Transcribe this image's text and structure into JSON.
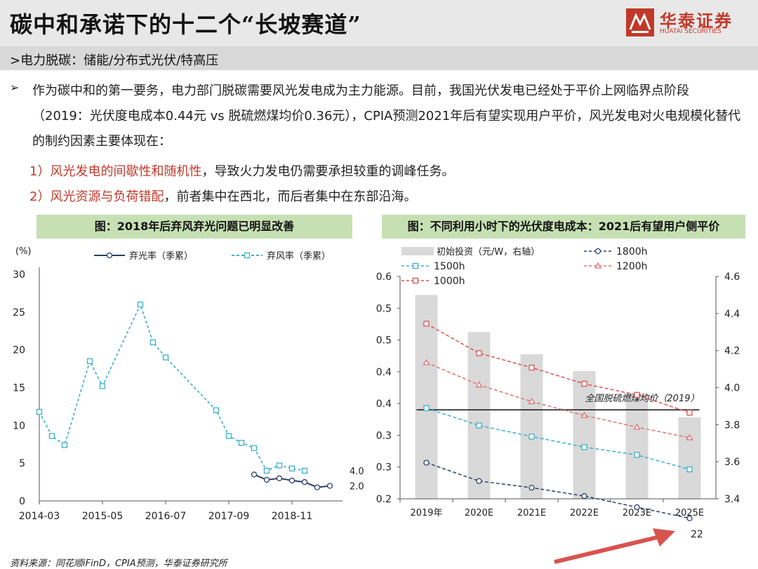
{
  "header": {
    "title": "碳中和承诺下的十二个“长坡赛道”",
    "logo_cn": "华泰证券",
    "logo_en": "HUATAI SECURITIES"
  },
  "subtitle": ">电力脱碳：储能/分布式光伏/特高压",
  "bullet_symbol": "➢",
  "paragraph": "作为碳中和的第一要务，电力部门脱碳需要风光发电成为主力能源。目前，我国光伏发电已经处于平价上网临界点阶段（2019：光伏度电成本0.44元 vs 脱硫燃煤均价0.36元），CPIA预测2021年后有望实现用户平价，风光发电对火电规模化替代的制约因素主要体现在：",
  "points": [
    {
      "red": "1）风光发电的间歇性和随机性",
      "rest": "，导致火力发电仍需要承担较重的调峰任务。"
    },
    {
      "red": "2）风光资源与负荷错配",
      "rest": "，前者集中在西北，而后者集中在东部沿海。"
    }
  ],
  "footer": "资料来源：同花顺iFinD，CPIA预测，华泰证券研究所",
  "page_number": "22",
  "colors": {
    "red": "#c0392b",
    "green_box": "#c6e0b4",
    "navy": "#2c3e6b",
    "teal": "#3ab0c9",
    "bar_gray": "#d9d9d9"
  },
  "chart_data": [
    {
      "type": "line",
      "title": "图：2018年后弃风弃光问题已明显改善",
      "ylabel": "(%)",
      "ylim": [
        0,
        30
      ],
      "yticks": [
        "0",
        "5",
        "10",
        "15",
        "20",
        "25",
        "30"
      ],
      "xtick_labels": [
        "2014-03",
        "2015-05",
        "2016-07",
        "2017-09",
        "2018-11"
      ],
      "xtick_quarters": [
        0,
        5,
        10,
        15,
        20
      ],
      "x_quarters_total": 24,
      "legend": "top",
      "series": [
        {
          "name": "弃光率（季累）",
          "color": "#2c3e6b",
          "style": "solid",
          "points": [
            [
              17,
              3.5
            ],
            [
              18,
              2.8
            ],
            [
              19,
              3.0
            ],
            [
              20,
              2.7
            ],
            [
              21,
              2.5
            ],
            [
              22,
              1.8
            ],
            [
              23,
              2.0
            ]
          ]
        },
        {
          "name": "弃风率（季累）",
          "color": "#3ab0c9",
          "style": "dashed",
          "points": [
            [
              0,
              11.8
            ],
            [
              1,
              8.6
            ],
            [
              2,
              7.4
            ],
            [
              4,
              18.5
            ],
            [
              5,
              15.2
            ],
            [
              8,
              26.0
            ],
            [
              9,
              21.0
            ],
            [
              10,
              19.0
            ],
            [
              14,
              12.0
            ],
            [
              15,
              8.6
            ],
            [
              16,
              7.7
            ],
            [
              17,
              7.0
            ],
            [
              18,
              4.0
            ],
            [
              19,
              4.7
            ],
            [
              20,
              4.3
            ],
            [
              21,
              4.0
            ]
          ]
        }
      ],
      "end_labels": [
        "4.0",
        "2.0"
      ]
    },
    {
      "type": "bar+line",
      "title": "图：不同利用小时下的光伏度电成本：2021后有望用户侧平价",
      "categories": [
        "2019年",
        "2020E",
        "2021E",
        "2022E",
        "2023E",
        "2025E"
      ],
      "left_ylim": [
        0.2,
        0.6
      ],
      "left_yticks": [
        "0.2",
        "0.3",
        "0.3",
        "0.4",
        "0.4",
        "0.5",
        "0.5",
        "0.6"
      ],
      "right_ylim": [
        3.4,
        4.6
      ],
      "right_yticks": [
        "3.4",
        "3.6",
        "3.8",
        "4.0",
        "4.2",
        "4.4",
        "4.6"
      ],
      "bars": {
        "name": "初始投资（元/W，右轴）",
        "color": "#d9d9d9",
        "values": [
          4.5,
          4.3,
          4.18,
          4.09,
          3.97,
          3.84
        ]
      },
      "series": [
        {
          "name": "1800h",
          "color": "#2c3e6b",
          "marker": "circle",
          "values": [
            0.265,
            0.232,
            0.22,
            0.205,
            0.185,
            0.165
          ]
        },
        {
          "name": "1500h",
          "color": "#3ab0c9",
          "marker": "square",
          "values": [
            0.363,
            0.332,
            0.312,
            0.293,
            0.279,
            0.253
          ]
        },
        {
          "name": "1200h",
          "color": "#e07070",
          "marker": "triangle",
          "values": [
            0.445,
            0.405,
            0.375,
            0.35,
            0.329,
            0.31
          ]
        },
        {
          "name": "1000h",
          "color": "#d9534f",
          "marker": "square",
          "values": [
            0.515,
            0.462,
            0.436,
            0.407,
            0.387,
            0.355
          ]
        }
      ],
      "reference": {
        "label": "全国脱硫燃煤均价（2019）",
        "value": 0.36,
        "color": "#222222"
      }
    }
  ]
}
